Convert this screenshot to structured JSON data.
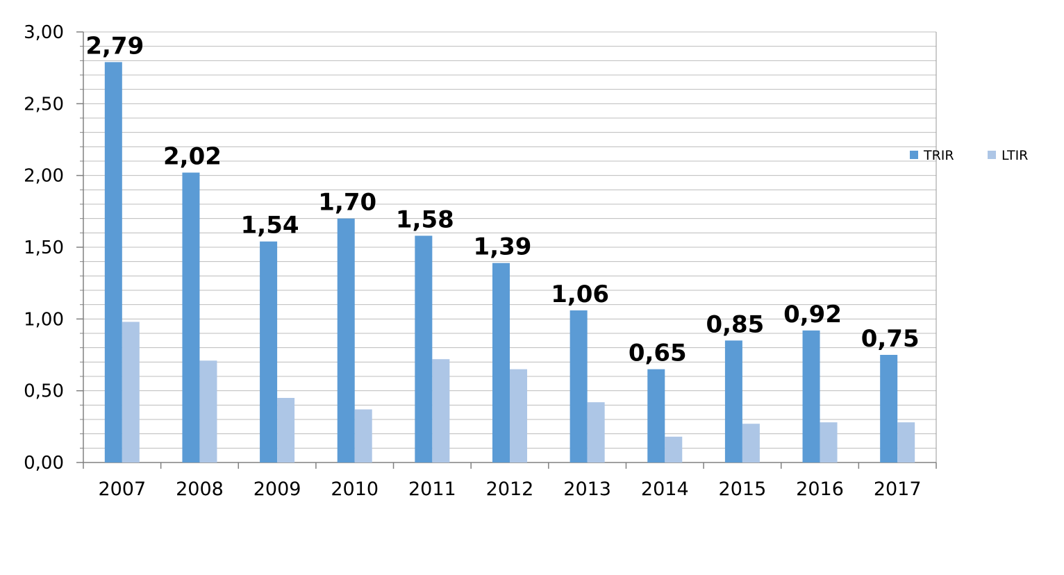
{
  "chart_data": {
    "type": "bar",
    "categories": [
      "2007",
      "2008",
      "2009",
      "2010",
      "2011",
      "2012",
      "2013",
      "2014",
      "2015",
      "2016",
      "2017"
    ],
    "series": [
      {
        "name": "TRIR",
        "color": "#5b9bd5",
        "values": [
          2.79,
          2.02,
          1.54,
          1.7,
          1.58,
          1.39,
          1.06,
          0.65,
          0.85,
          0.92,
          0.75
        ],
        "data_labels": [
          "2,79",
          "2,02",
          "1,54",
          "1,70",
          "1,58",
          "1,39",
          "1,06",
          "0,65",
          "0,85",
          "0,92",
          "0,75"
        ]
      },
      {
        "name": "LTIR",
        "color": "#adc6e6",
        "values": [
          0.98,
          0.71,
          0.45,
          0.37,
          0.72,
          0.65,
          0.42,
          0.18,
          0.27,
          0.28,
          0.28
        ]
      }
    ],
    "ylim": [
      0,
      3
    ],
    "yticks": [
      0,
      0.5,
      1,
      1.5,
      2,
      2.5,
      3
    ],
    "ytick_labels": [
      "0,00",
      "0,50",
      "1,00",
      "1,50",
      "2,00",
      "2,50",
      "3,00"
    ],
    "grid": true,
    "legend": "right",
    "title": "",
    "xlabel": "",
    "ylabel": ""
  }
}
